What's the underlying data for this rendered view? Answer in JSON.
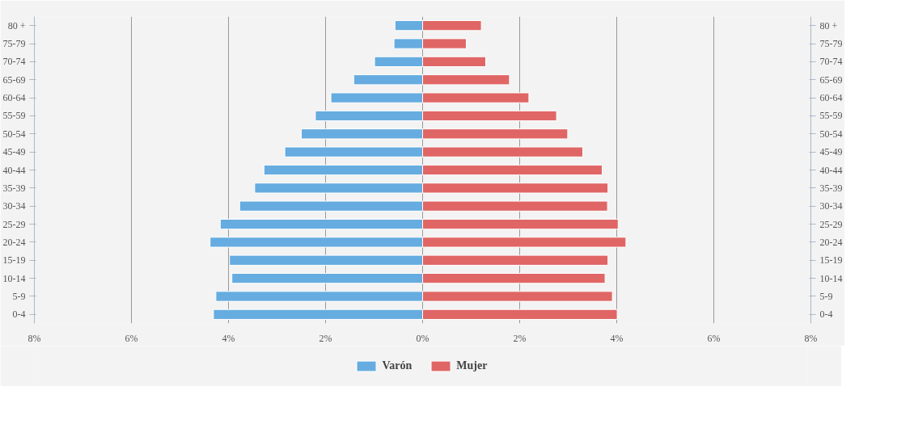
{
  "chart_data": {
    "type": "bar",
    "orientation": "horizontal",
    "stacked": true,
    "categories": [
      "80 +",
      "75-79",
      "70-74",
      "65-69",
      "60-64",
      "55-59",
      "50-54",
      "45-49",
      "40-44",
      "35-39",
      "30-34",
      "25-29",
      "20-24",
      "15-19",
      "10-14",
      "5-9",
      "0-4"
    ],
    "y2_categories": [
      "80 +",
      "75-79",
      "70-74",
      "65-69",
      "60-64",
      "55-59",
      "50-54",
      "45-49",
      "40-44",
      "35-39",
      "30-34",
      "25-29",
      "20-24",
      "15-19",
      "10-14",
      "5-9",
      "0-4"
    ],
    "series": [
      {
        "name": "Varón",
        "color": "#66ace0",
        "values": [
          -0.57,
          -0.59,
          -0.99,
          -1.42,
          -1.89,
          -2.21,
          -2.5,
          -2.84,
          -3.27,
          -3.46,
          -3.77,
          -4.17,
          -4.38,
          -3.98,
          -3.93,
          -4.26,
          -4.31
        ]
      },
      {
        "name": "Mujer",
        "color": "#e06666",
        "values": [
          1.21,
          0.9,
          1.3,
          1.79,
          2.19,
          2.76,
          2.99,
          3.3,
          3.7,
          3.82,
          3.81,
          4.03,
          4.19,
          3.82,
          3.76,
          3.91,
          4.01
        ]
      }
    ],
    "xlim": [
      -8,
      8
    ],
    "xticks": [
      {
        "value": -8,
        "label": "8%"
      },
      {
        "value": -6,
        "label": "6%"
      },
      {
        "value": -4,
        "label": "4%"
      },
      {
        "value": -2,
        "label": "2%"
      },
      {
        "value": 0,
        "label": "0%"
      },
      {
        "value": 2,
        "label": "2%"
      },
      {
        "value": 4,
        "label": "4%"
      },
      {
        "value": 6,
        "label": "6%"
      },
      {
        "value": 8,
        "label": "8%"
      }
    ],
    "grid": "x",
    "legend": "bottom"
  }
}
